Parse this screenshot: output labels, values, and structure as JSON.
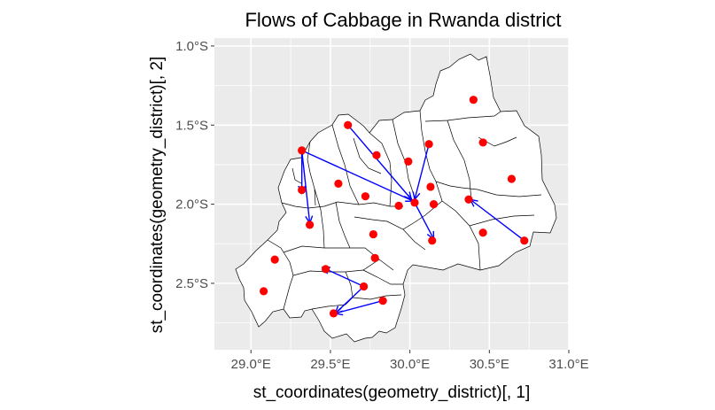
{
  "chart_data": {
    "type": "scatter",
    "title": "Flows of Cabbage in Rwanda district",
    "xlabel": "st_coordinates(geometry_district)[, 1]",
    "ylabel": "st_coordinates(geometry_district)[, 2]",
    "xlim": [
      28.77,
      31.0
    ],
    "ylim": [
      -2.92,
      -0.95
    ],
    "x_ticks": [
      29.0,
      29.5,
      30.0,
      30.5,
      31.0
    ],
    "x_tick_labels": [
      "29.0°E",
      "29.5°E",
      "30.0°E",
      "30.5°E",
      "31.0°E"
    ],
    "y_ticks": [
      -1.0,
      -1.5,
      -2.0,
      -2.5
    ],
    "y_tick_labels": [
      "1.0°S",
      "1.5°S",
      "2.0°S",
      "2.5°S"
    ],
    "grid": true,
    "colors": {
      "panel_background": "#ebebeb",
      "grid": "#ffffff",
      "district_fill": "#ffffff",
      "district_border": "#000000",
      "points": "#ff0000",
      "arrows": "#0000ff"
    },
    "points": {
      "x": [
        30.4,
        29.61,
        30.12,
        30.46,
        29.32,
        29.79,
        29.99,
        30.64,
        29.55,
        29.32,
        30.13,
        29.72,
        30.37,
        30.03,
        29.93,
        30.15,
        29.37,
        30.46,
        30.72,
        29.77,
        29.78,
        30.14,
        29.15,
        29.47,
        29.71,
        29.83,
        29.08,
        29.52
      ],
      "y": [
        -1.34,
        -1.5,
        -1.62,
        -1.61,
        -1.66,
        -1.69,
        -1.73,
        -1.84,
        -1.87,
        -1.91,
        -1.89,
        -1.95,
        -1.97,
        -1.99,
        -2.01,
        -2.0,
        -2.13,
        -2.18,
        -2.23,
        -2.19,
        -2.34,
        -2.23,
        -2.35,
        -2.41,
        -2.52,
        -2.61,
        -2.55,
        -2.69
      ]
    },
    "flows": [
      {
        "from": [
          29.61,
          -1.5
        ],
        "to": [
          30.01,
          -1.97
        ]
      },
      {
        "from": [
          30.12,
          -1.62
        ],
        "to": [
          30.03,
          -1.97
        ]
      },
      {
        "from": [
          29.32,
          -1.66
        ],
        "to": [
          30.02,
          -1.98
        ]
      },
      {
        "from": [
          29.32,
          -1.66
        ],
        "to": [
          29.32,
          -1.93
        ]
      },
      {
        "from": [
          29.32,
          -1.66
        ],
        "to": [
          29.37,
          -2.12
        ]
      },
      {
        "from": [
          30.03,
          -1.99
        ],
        "to": [
          30.15,
          -2.22
        ]
      },
      {
        "from": [
          30.72,
          -2.23
        ],
        "to": [
          30.38,
          -1.97
        ]
      },
      {
        "from": [
          29.71,
          -2.52
        ],
        "to": [
          29.45,
          -2.4
        ]
      },
      {
        "from": [
          29.83,
          -2.61
        ],
        "to": [
          29.53,
          -2.69
        ]
      },
      {
        "from": [
          29.71,
          -2.52
        ],
        "to": [
          29.53,
          -2.69
        ]
      }
    ]
  }
}
